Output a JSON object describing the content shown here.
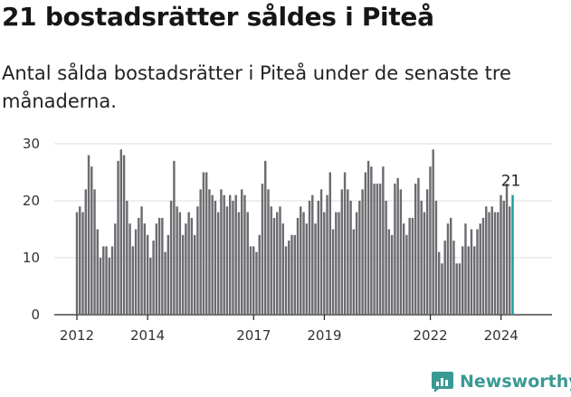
{
  "header": {
    "title": "21 bostadsrätter såldes i Piteå",
    "subtitle": "Antal sålda bostadsrätter i Piteå under de senaste tre månaderna."
  },
  "brand": {
    "name": "Newsworthy"
  },
  "colors": {
    "bar": "#6b6b70",
    "highlight": "#1a9a9a",
    "brand": "#3a9a93"
  },
  "chart_data": {
    "type": "bar",
    "title": "21 bostadsrätter såldes i Piteå",
    "subtitle": "Antal sålda bostadsrätter i Piteå under de senaste tre månaderna.",
    "xlabel": "",
    "ylabel": "",
    "ylim": [
      0,
      30
    ],
    "yticks": [
      0,
      10,
      20,
      30
    ],
    "x_range": [
      2012.0,
      2024.75
    ],
    "x_start": 2012.0,
    "x_step": 0.0833,
    "xticks": [
      {
        "label": "2012",
        "x": 2012.0
      },
      {
        "label": "2014",
        "x": 2014.0
      },
      {
        "label": "2017",
        "x": 2017.0
      },
      {
        "label": "2019",
        "x": 2019.0
      },
      {
        "label": "2022",
        "x": 2022.0
      },
      {
        "label": "2024",
        "x": 2024.0
      }
    ],
    "grid": true,
    "highlight_last": true,
    "last_value_label": "21",
    "values": [
      18,
      19,
      18,
      22,
      28,
      26,
      22,
      15,
      10,
      12,
      12,
      10,
      12,
      16,
      27,
      29,
      28,
      20,
      16,
      12,
      15,
      17,
      19,
      16,
      14,
      10,
      13,
      16,
      17,
      17,
      11,
      14,
      20,
      27,
      19,
      18,
      14,
      16,
      18,
      17,
      14,
      19,
      22,
      25,
      25,
      22,
      21,
      20,
      18,
      22,
      21,
      19,
      21,
      20,
      21,
      18,
      22,
      21,
      18,
      12,
      12,
      11,
      14,
      23,
      27,
      22,
      19,
      17,
      18,
      19,
      16,
      12,
      13,
      14,
      14,
      17,
      19,
      18,
      16,
      20,
      21,
      16,
      20,
      22,
      18,
      21,
      25,
      15,
      18,
      18,
      22,
      25,
      22,
      20,
      15,
      18,
      20,
      22,
      25,
      27,
      26,
      23,
      23,
      23,
      26,
      20,
      15,
      14,
      23,
      24,
      22,
      16,
      14,
      17,
      17,
      23,
      24,
      20,
      18,
      22,
      26,
      29,
      20,
      11,
      9,
      13,
      16,
      17,
      13,
      9,
      9,
      12,
      16,
      12,
      15,
      12,
      15,
      16,
      17,
      19,
      18,
      19,
      18,
      18,
      21,
      20,
      23,
      19,
      21
    ]
  }
}
